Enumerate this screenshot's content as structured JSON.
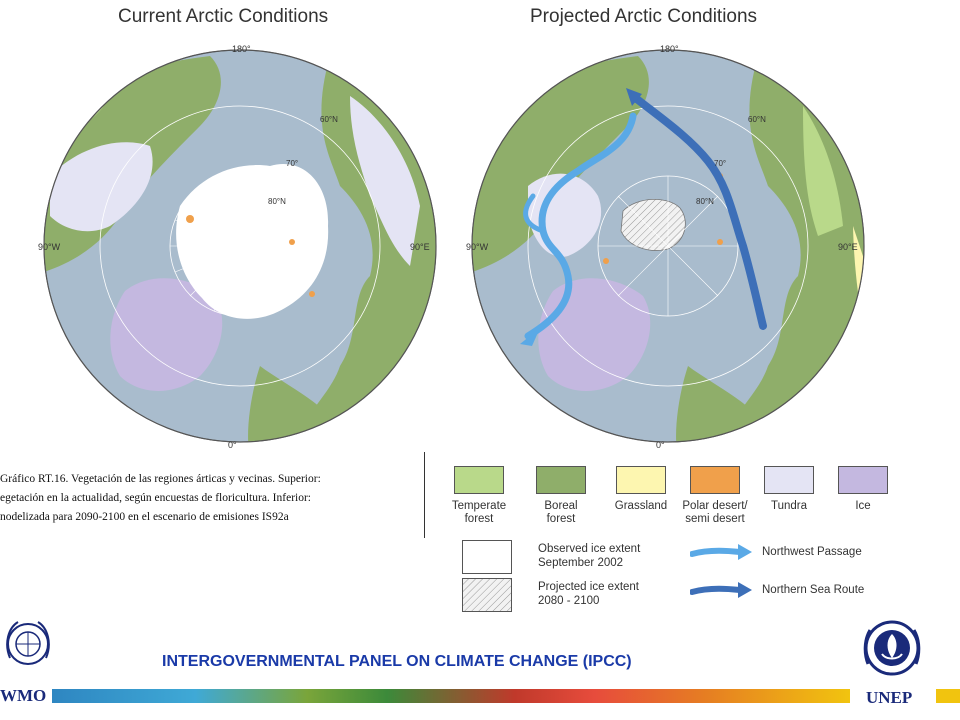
{
  "maps": {
    "current": {
      "title": "Current Arctic Conditions",
      "labels": {
        "top": "180°",
        "left": "90°W",
        "right": "90°E",
        "bottom": "0°",
        "lat70": "70°",
        "lat80": "80°N",
        "lat60": "60°N"
      }
    },
    "projected": {
      "title": "Projected Arctic Conditions",
      "labels": {
        "top": "180°",
        "left": "90°W",
        "right": "90°E",
        "bottom": "0°",
        "lat70": "70°",
        "lat80": "80°N",
        "lat60": "60°N"
      }
    }
  },
  "caption": {
    "lines": [
      "Gráfico RT.16. Vegetación de las regiones árticas y vecinas. Superior:",
      "egetación en la actualidad, según encuestas de floricultura. Inferior:",
      "nodelizada para 2090-2100 en el escenario de emisiones IS92a"
    ]
  },
  "legend": {
    "swatches": [
      {
        "label": "Temperate\nforest",
        "color": "#b9d98a"
      },
      {
        "label": "Boreal\nforest",
        "color": "#8fae6a"
      },
      {
        "label": "Grassland",
        "color": "#fdf6b0"
      },
      {
        "label": "Polar desert/\nsemi desert",
        "color": "#f0a04b"
      },
      {
        "label": "Tundra",
        "color": "#e4e4f4"
      },
      {
        "label": "Ice",
        "color": "#c4b8e0"
      }
    ],
    "observed_ice": "Observed ice extent\nSeptember 2002",
    "projected_ice": "Projected ice extent\n2080 - 2100",
    "northwest_passage": "Northwest Passage",
    "northern_sea_route": "Northern Sea Route",
    "colors": {
      "northwest_passage": "#5aa9e6",
      "northern_sea_route": "#3d6fb8"
    }
  },
  "footer": {
    "title": "INTERGOVERNMENTAL PANEL ON CLIMATE CHANGE (IPCC)",
    "wmo": "WMO",
    "unep": "UNEP"
  },
  "colors": {
    "ocean": "#a9bccd",
    "boreal": "#8fae6a",
    "temperate": "#b9d98a",
    "tundra": "#e4e4f4",
    "ice_sheet": "#c4b8e0",
    "sea_ice": "#ffffff",
    "polar_desert": "#f0a04b"
  }
}
